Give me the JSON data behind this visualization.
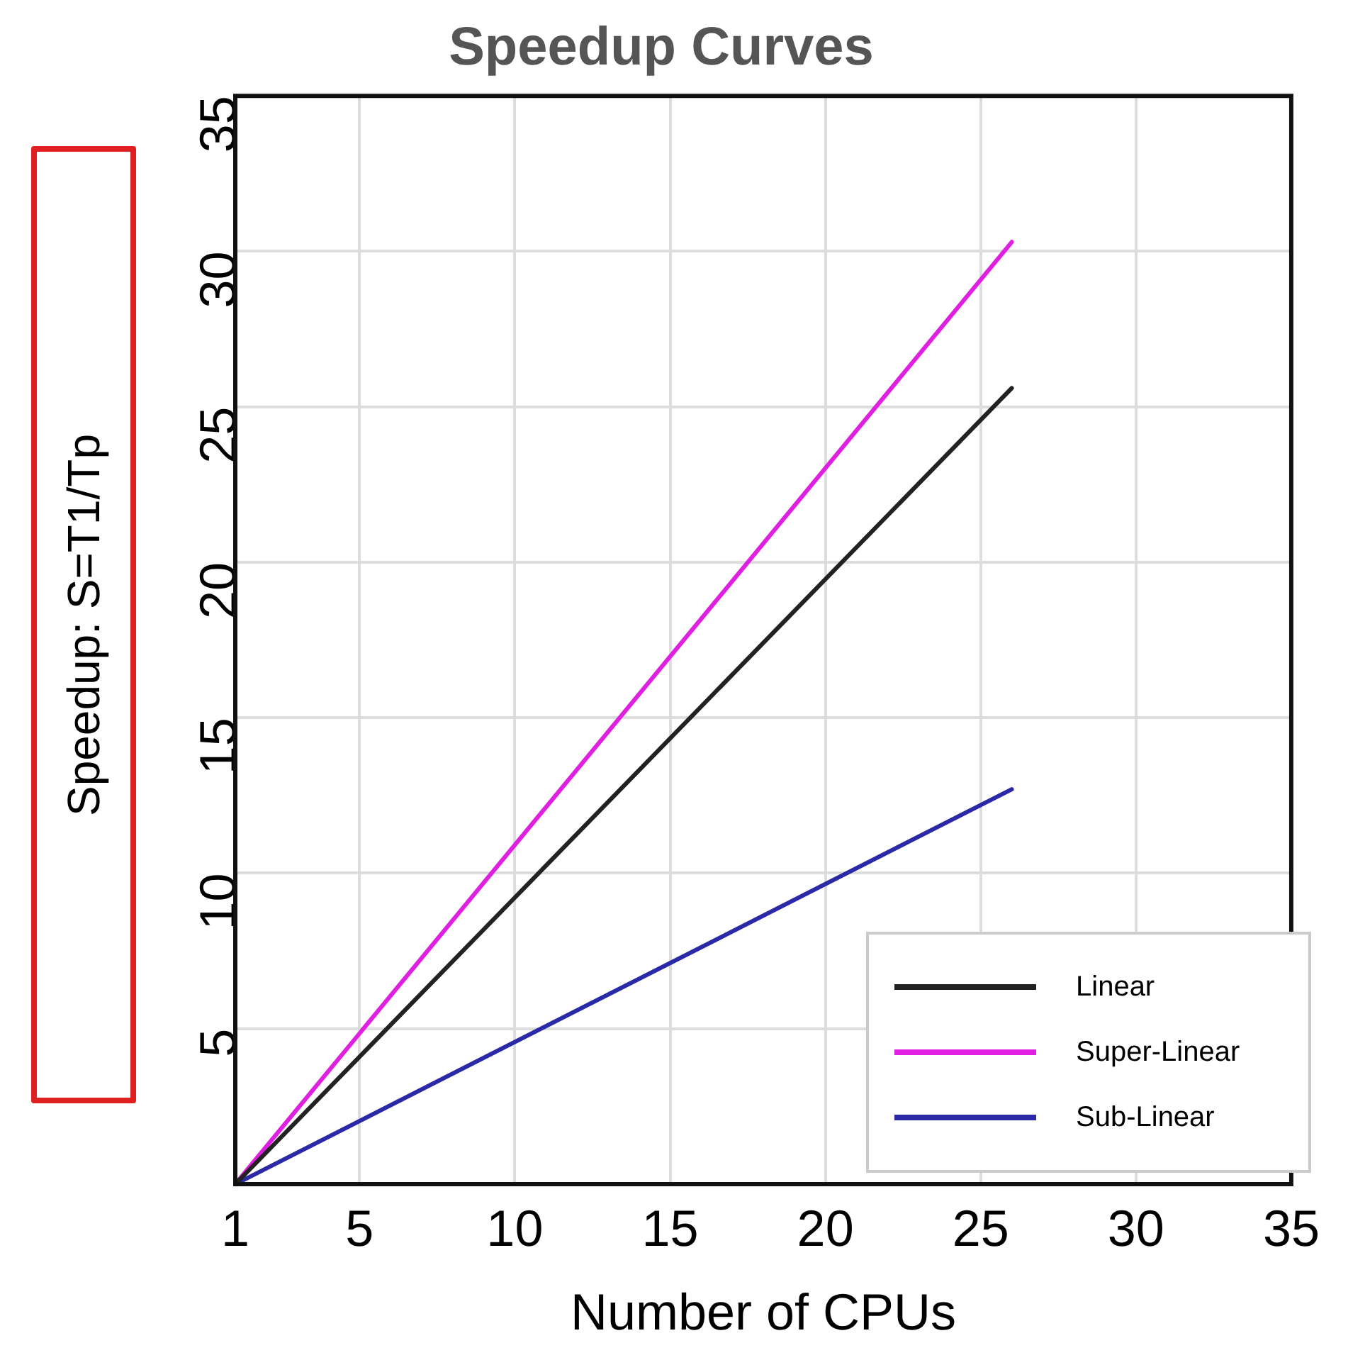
{
  "chart_data": {
    "type": "line",
    "title": "Speedup Curves",
    "xlabel": "Number of CPUs",
    "ylabel": "Speedup: S=T1/Tp",
    "x": [
      1,
      26
    ],
    "series": [
      {
        "name": "Linear",
        "color": "#222222",
        "values": [
          0,
          25.6
        ]
      },
      {
        "name": "Super-Linear",
        "color": "#e020e0",
        "values": [
          0,
          30.3
        ]
      },
      {
        "name": "Sub-Linear",
        "color": "#2a2aa8",
        "values": [
          0,
          12.7
        ]
      }
    ],
    "xlim": [
      1,
      35
    ],
    "xticks": [
      1,
      5,
      10,
      15,
      20,
      25,
      30,
      35
    ],
    "ylim": [
      0,
      35
    ],
    "yticks": [
      5,
      10,
      15,
      20,
      25,
      30,
      35
    ],
    "grid": true,
    "legend": "bottom right",
    "marker": "none",
    "line_style": "solid"
  }
}
